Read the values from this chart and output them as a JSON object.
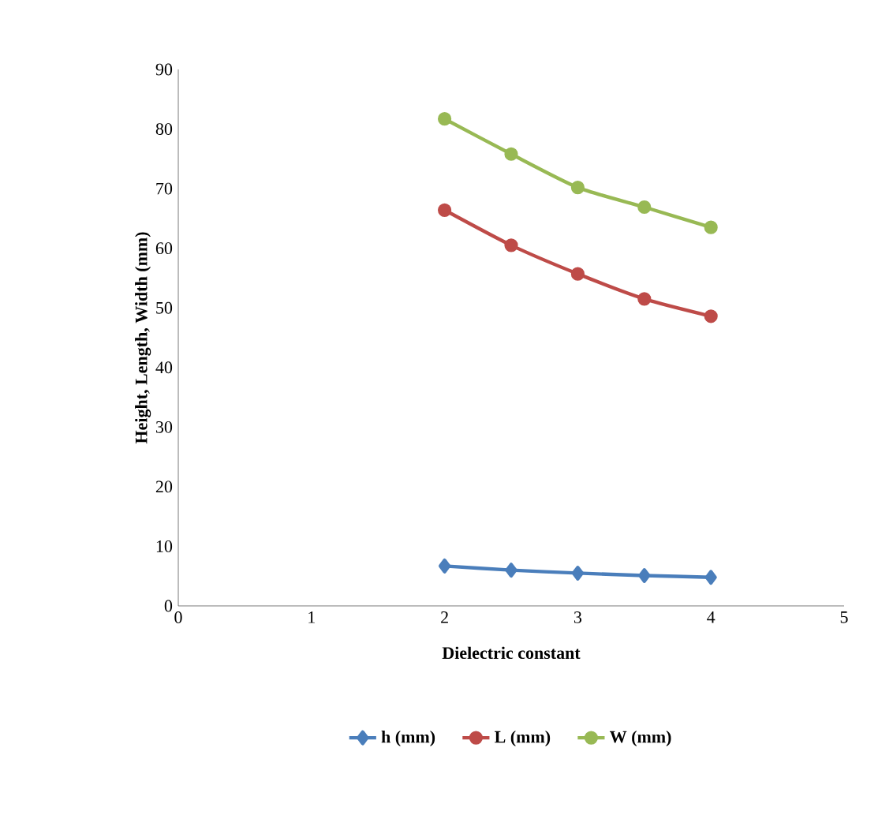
{
  "chart_data": {
    "type": "line",
    "xlabel": "Dielectric constant",
    "ylabel": "Height, Length, Width (mm)",
    "x": [
      2,
      2.5,
      3,
      3.5,
      4
    ],
    "series": [
      {
        "name": "h (mm)",
        "color": "#4a7ebb",
        "marker": "diamond",
        "values": [
          6.7,
          6.0,
          5.5,
          5.1,
          4.8
        ]
      },
      {
        "name": "L (mm)",
        "color": "#be4b48",
        "marker": "circle",
        "values": [
          66.4,
          60.5,
          55.7,
          51.5,
          48.6
        ]
      },
      {
        "name": "W (mm)",
        "color": "#98b954",
        "marker": "circle",
        "values": [
          81.7,
          75.8,
          70.2,
          66.9,
          63.5
        ]
      }
    ],
    "xlim": [
      0,
      5
    ],
    "xticks": [
      0,
      1,
      2,
      3,
      4,
      5
    ],
    "ylim": [
      0,
      90
    ],
    "yticks": [
      0,
      10,
      20,
      30,
      40,
      50,
      60,
      70,
      80,
      90
    ],
    "grid": false,
    "legend": "bottom",
    "line_style": "solid"
  }
}
